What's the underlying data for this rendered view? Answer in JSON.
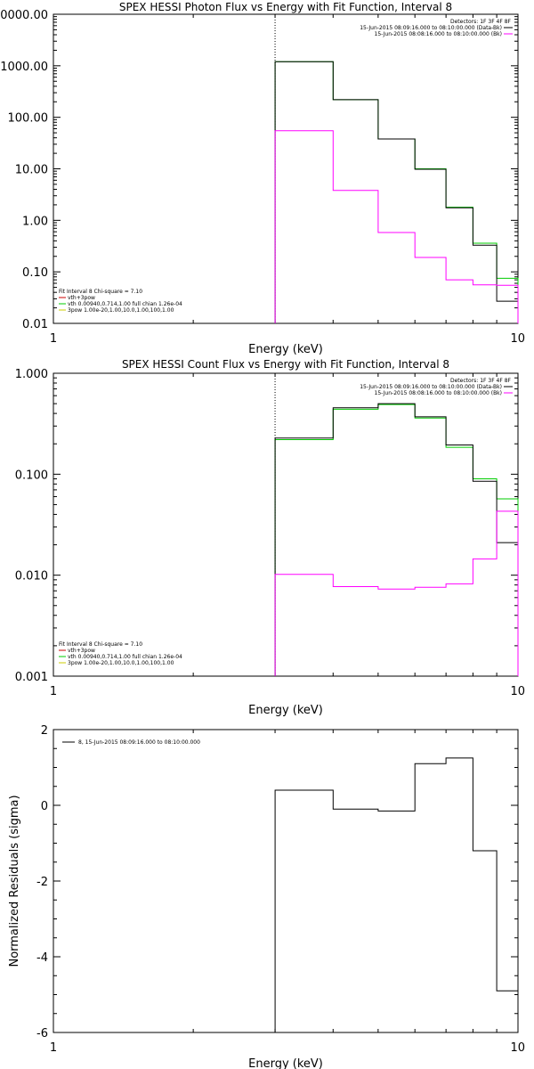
{
  "colors": {
    "data": "#000000",
    "model": "#00cc00",
    "background": "#ff00ff",
    "bg_legend": "#cc0000",
    "gauss": "#cccc00",
    "axis": "#000000"
  },
  "chart_data": [
    {
      "type": "line",
      "title": "SPEX HESSI Photon Flux vs Energy with Fit Function, Interval 8",
      "xlabel": "Energy (keV)",
      "ylabel": "",
      "xscale": "log",
      "yscale": "log",
      "xlim": [
        1,
        10
      ],
      "ylim": [
        0.01,
        10000
      ],
      "xticks": [
        "1",
        "10"
      ],
      "yticks": [
        "10000.00",
        "1000.00",
        "100.00",
        "10.00",
        "1.00",
        "0.10",
        "0.01"
      ],
      "legend_top": [
        "Detectors: 1F 3F 4F 8F",
        "15-Jun-2015 08:09:16.000 to 08:10:00.000 (Data-Bk)",
        "15-Jun-2015 08:08:16.000 to 08:10:00.000 (Bk)"
      ],
      "legend_top_colors": [
        "#000000",
        "#000000",
        "#ff00ff"
      ],
      "legend_bottom": [
        "Fit Interval 8   Chi-square = 7.10",
        "vth+3pow",
        "vth 0.00940,0.714,1.00   full chian 1.26e-04",
        "3pow 1.00e-20,1.00,10.0,1.00,100,1.00"
      ],
      "legend_bottom_colors": [
        "#000000",
        "#cc0000",
        "#00cc00",
        "#cccc00"
      ],
      "vline_x": 3,
      "x_edges": [
        3,
        4,
        5,
        6,
        7,
        8,
        9,
        10
      ],
      "series": [
        {
          "name": "vth",
          "color": "#00cc00",
          "values": [
            1200,
            220,
            38,
            10,
            1.8,
            0.36,
            0.075
          ]
        },
        {
          "name": "15-Jun-2015 08:09:16.000 to 08:10:00.000 (Data-Bk)",
          "color": "#000000",
          "values": [
            1200,
            220,
            38,
            9.8,
            1.75,
            0.33,
            0.027
          ]
        },
        {
          "name": "15-Jun-2015 08:08:16.000 to 08:10:00.000 (Bk)",
          "color": "#ff00ff",
          "values": [
            55,
            3.8,
            0.58,
            0.19,
            0.07,
            0.056,
            0.055
          ]
        }
      ]
    },
    {
      "type": "line",
      "title": "SPEX HESSI Count Flux vs Energy with Fit Function, Interval 8",
      "xlabel": "Energy (keV)",
      "ylabel": "",
      "xscale": "log",
      "yscale": "log",
      "xlim": [
        1,
        10
      ],
      "ylim": [
        0.001,
        1
      ],
      "xticks": [
        "1",
        "10"
      ],
      "yticks": [
        "1.000",
        "0.100",
        "0.010",
        "0.001"
      ],
      "legend_top": [
        "Detectors: 1F 3F 4F 8F",
        "15-Jun-2015 08:09:16.000 to 08:10:00.000 (Data-Bk)",
        "15-Jun-2015 08:08:16.000 to 08:10:00.000 (Bk)"
      ],
      "legend_top_colors": [
        "#000000",
        "#000000",
        "#ff00ff"
      ],
      "legend_bottom": [
        "Fit Interval 8   Chi-square = 7.10",
        "vth+3pow",
        "vth 0.00940,0.714,1.00   full chian 1.26e-04",
        "3pow 1.00e-20,1.00,10.0,1.00,100,1.00"
      ],
      "legend_bottom_colors": [
        "#000000",
        "#cc0000",
        "#00cc00",
        "#cccc00"
      ],
      "vline_x": 3,
      "x_edges": [
        3,
        4,
        5,
        6,
        7,
        8,
        9,
        10
      ],
      "series": [
        {
          "name": "vth",
          "color": "#00cc00",
          "values": [
            0.22,
            0.44,
            0.49,
            0.36,
            0.185,
            0.09,
            0.057
          ]
        },
        {
          "name": "15-Jun-2015 08:09:16.000 to 08:10:00.000 (Data-Bk)",
          "color": "#000000",
          "values": [
            0.228,
            0.455,
            0.5,
            0.37,
            0.195,
            0.085,
            0.021
          ]
        },
        {
          "name": "15-Jun-2015 08:08:16.000 to 08:10:00.000 (Bk)",
          "color": "#ff00ff",
          "values": [
            0.0102,
            0.0077,
            0.0073,
            0.0076,
            0.0082,
            0.0145,
            0.043
          ]
        }
      ]
    },
    {
      "type": "line",
      "title": "",
      "xlabel": "Energy (keV)",
      "ylabel": "Normalized Residuals (sigma)",
      "xscale": "log",
      "yscale": "linear",
      "xlim": [
        1,
        10
      ],
      "ylim": [
        -6,
        2
      ],
      "xticks": [
        "1",
        "10"
      ],
      "yticks": [
        "2",
        "0",
        "-2",
        "-4",
        "-6"
      ],
      "legend_top": [
        "8, 15-Jun-2015 08:09:16.000 to 08:10:00.000"
      ],
      "legend_top_colors": [
        "#000000"
      ],
      "x_edges": [
        3,
        4,
        5,
        6,
        7,
        8,
        9,
        10
      ],
      "series": [
        {
          "name": "8, 15-Jun-2015 08:09:16.000 to 08:10:00.000",
          "color": "#000000",
          "values": [
            0.4,
            -0.1,
            -0.15,
            1.1,
            1.25,
            -1.2,
            -4.9
          ]
        }
      ]
    }
  ]
}
